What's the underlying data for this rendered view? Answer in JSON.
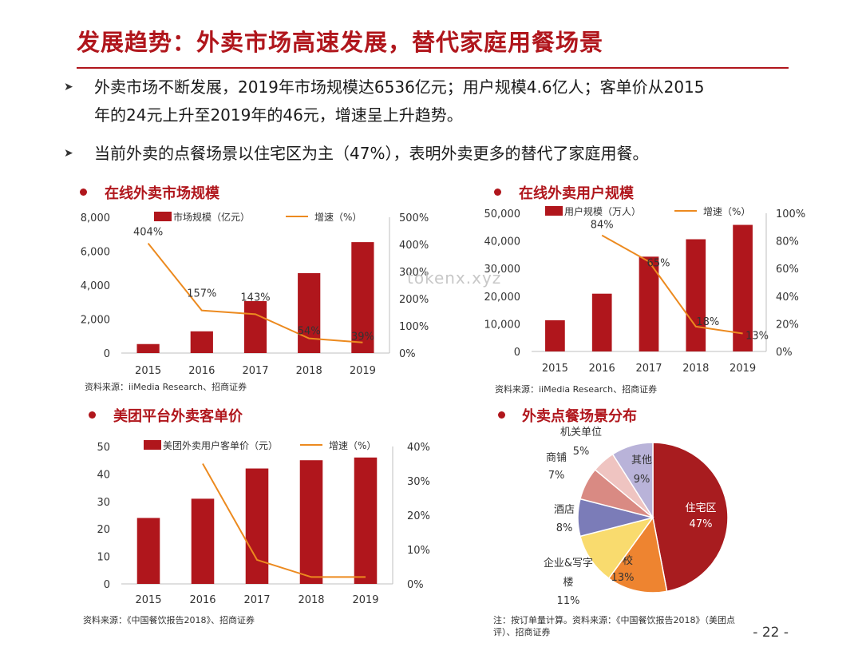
{
  "header": {
    "title": "发展趋势：外卖市场高速发展，替代家庭用餐场景"
  },
  "bullets": [
    {
      "line1": "外卖市场不断发展，2019年市场规模达6536亿元；用户规模4.6亿人；客单价从2015",
      "line2": "年的24元上升至2019年的46元，增速呈上升趋势。"
    },
    {
      "line1": "当前外卖的点餐场景以住宅区为主（47%），表明外卖更多的替代了家庭用餐。"
    }
  ],
  "watermark": "tokenx.xyz",
  "page_number": "- 22 -",
  "chart_data": [
    {
      "type": "bar",
      "title": "在线外卖市场规模",
      "categories": [
        "2015",
        "2016",
        "2017",
        "2018",
        "2019"
      ],
      "series": [
        {
          "name": "市场规模（亿元）",
          "kind": "bar",
          "axis": "left",
          "color": "#b0161c",
          "values": [
            530,
            1280,
            3060,
            4710,
            6536
          ]
        },
        {
          "name": "增速（%）",
          "kind": "line",
          "axis": "right",
          "color": "#ec8a1f",
          "values": [
            404,
            157,
            143,
            54,
            39
          ],
          "labels": [
            "404%",
            "157%",
            "143%",
            "54%",
            "39%"
          ]
        }
      ],
      "ylim": [
        0,
        8000
      ],
      "yticks": [
        "0",
        "2,000",
        "4,000",
        "6,000",
        "8,000"
      ],
      "y2lim": [
        0,
        500
      ],
      "y2ticks": [
        "0%",
        "100%",
        "200%",
        "300%",
        "400%",
        "500%"
      ],
      "source": "资料来源：iiMedia Research、招商证券"
    },
    {
      "type": "bar",
      "title": "在线外卖用户规模",
      "categories": [
        "2015",
        "2016",
        "2017",
        "2018",
        "2019"
      ],
      "series": [
        {
          "name": "用户规模（万人）",
          "kind": "bar",
          "axis": "left",
          "color": "#b0161c",
          "values": [
            11300,
            20900,
            34300,
            40600,
            45800
          ]
        },
        {
          "name": "增速（%）",
          "kind": "line",
          "axis": "right",
          "color": "#ec8a1f",
          "values": [
            null,
            84,
            65,
            18,
            13
          ],
          "labels": [
            "",
            "84%",
            "65%",
            "18%",
            "13%"
          ]
        }
      ],
      "ylim": [
        0,
        50000
      ],
      "yticks": [
        "0",
        "10,000",
        "20,000",
        "30,000",
        "40,000",
        "50,000"
      ],
      "y2lim": [
        0,
        100
      ],
      "y2ticks": [
        "0%",
        "20%",
        "40%",
        "60%",
        "80%",
        "100%"
      ],
      "source": "资料来源：iiMedia Research、招商证券"
    },
    {
      "type": "bar",
      "title": "美团平台外卖客单价",
      "categories": [
        "2015",
        "2016",
        "2017",
        "2018",
        "2019"
      ],
      "series": [
        {
          "name": "美团外卖用户客单价（元）",
          "kind": "bar",
          "axis": "left",
          "color": "#b0161c",
          "values": [
            24,
            31,
            42,
            45,
            46
          ]
        },
        {
          "name": "增速（%）",
          "kind": "line",
          "axis": "right",
          "color": "#ec8a1f",
          "values": [
            null,
            35,
            7,
            2,
            2
          ],
          "labels": [
            "",
            "",
            "",
            "",
            ""
          ]
        }
      ],
      "ylim": [
        0,
        50
      ],
      "yticks": [
        "0",
        "10",
        "20",
        "30",
        "40",
        "50"
      ],
      "y2lim": [
        0,
        40
      ],
      "y2ticks": [
        "0%",
        "10%",
        "20%",
        "30%",
        "40%"
      ],
      "source": "资料来源：《中国餐饮报告2018》、招商证券"
    },
    {
      "type": "pie",
      "title": "外卖点餐场景分布",
      "slices": [
        {
          "label": "住宅区",
          "value": 47,
          "pct": "47%",
          "color": "#a81c1f"
        },
        {
          "label": "学校",
          "value": 13,
          "pct": "13%",
          "color": "#ee8430"
        },
        {
          "label": "企业&写字楼",
          "value": 11,
          "pct": "11%",
          "color": "#f9db6e"
        },
        {
          "label": "酒店",
          "value": 8,
          "pct": "8%",
          "color": "#7b7cb8"
        },
        {
          "label": "商铺",
          "value": 7,
          "pct": "7%",
          "color": "#d98a83"
        },
        {
          "label": "机关单位",
          "value": 5,
          "pct": "5%",
          "color": "#efc4c1"
        },
        {
          "label": "其他",
          "value": 9,
          "pct": "9%",
          "color": "#b9b3d9"
        }
      ],
      "source_line1": "注：按订单量计算。资料来源：《中国餐饮报告2018》（美团点",
      "source_line2": "评）、招商证券"
    }
  ]
}
